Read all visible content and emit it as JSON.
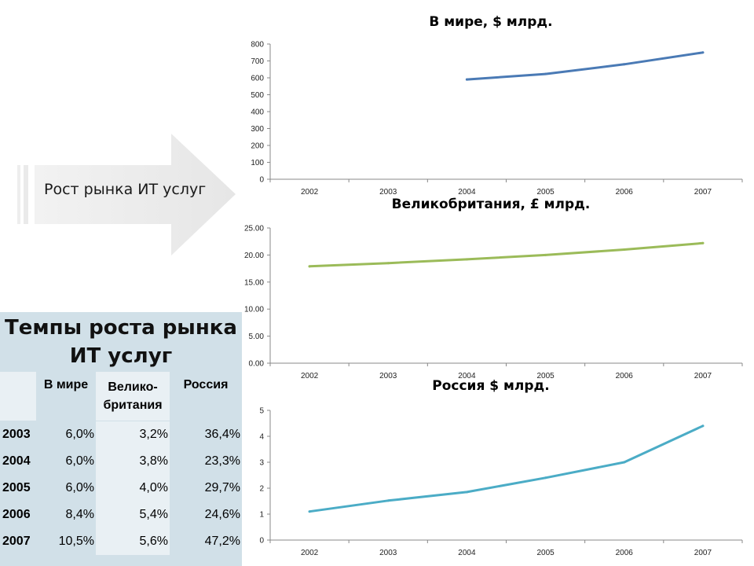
{
  "arrow": {
    "label": "Рост рынка ИТ услуг"
  },
  "charts": [
    {
      "title": "В мире, $ млрд.",
      "yTicks": [
        "0",
        "100",
        "200",
        "300",
        "400",
        "500",
        "600",
        "700",
        "800"
      ],
      "xTicks": [
        "2002",
        "2003",
        "2004",
        "2005",
        "2006",
        "2007"
      ],
      "color": "#4a7ab5"
    },
    {
      "title": "Великобритания, £ млрд.",
      "yTicks": [
        "0.00",
        "5.00",
        "10.00",
        "15.00",
        "20.00",
        "25.00"
      ],
      "xTicks": [
        "2002",
        "2003",
        "2004",
        "2005",
        "2006",
        "2007"
      ],
      "color": "#9bbb59"
    },
    {
      "title": "Россия $ млрд.",
      "yTicks": [
        "0",
        "1",
        "2",
        "3",
        "4",
        "5"
      ],
      "xTicks": [
        "2002",
        "2003",
        "2004",
        "2005",
        "2006",
        "2007"
      ],
      "color": "#4bacc6"
    }
  ],
  "chart_data": [
    {
      "type": "line",
      "title": "В мире, $ млрд.",
      "x": [
        "2002",
        "2003",
        "2004",
        "2005",
        "2006",
        "2007"
      ],
      "series": [
        {
          "values": [
            null,
            null,
            590,
            623,
            680,
            750
          ]
        }
      ],
      "ylim": [
        0,
        800
      ]
    },
    {
      "type": "line",
      "title": "Великобритания, £ млрд.",
      "x": [
        "2002",
        "2003",
        "2004",
        "2005",
        "2006",
        "2007"
      ],
      "series": [
        {
          "values": [
            17.9,
            18.5,
            19.2,
            20.0,
            21.0,
            22.2
          ]
        }
      ],
      "ylim": [
        0,
        25
      ]
    },
    {
      "type": "line",
      "title": "Россия $ млрд.",
      "x": [
        "2002",
        "2003",
        "2004",
        "2005",
        "2006",
        "2007"
      ],
      "series": [
        {
          "values": [
            1.1,
            1.52,
            1.85,
            2.4,
            3.0,
            4.4
          ]
        }
      ],
      "ylim": [
        0,
        5
      ]
    }
  ],
  "table": {
    "title": "Темпы роста рынка ИТ услуг",
    "headers": [
      "",
      "В мире",
      "Велико-британия",
      "Россия"
    ],
    "rows": [
      [
        "2003",
        "6,0%",
        "3,2%",
        "36,4%"
      ],
      [
        "2004",
        "6,0%",
        "3,8%",
        "23,3%"
      ],
      [
        "2005",
        "6,0%",
        "4,0%",
        "29,7%"
      ],
      [
        "2006",
        "8,4%",
        "5,4%",
        "24,6%"
      ],
      [
        "2007",
        "10,5%",
        "5,6%",
        "47,2%"
      ]
    ]
  }
}
